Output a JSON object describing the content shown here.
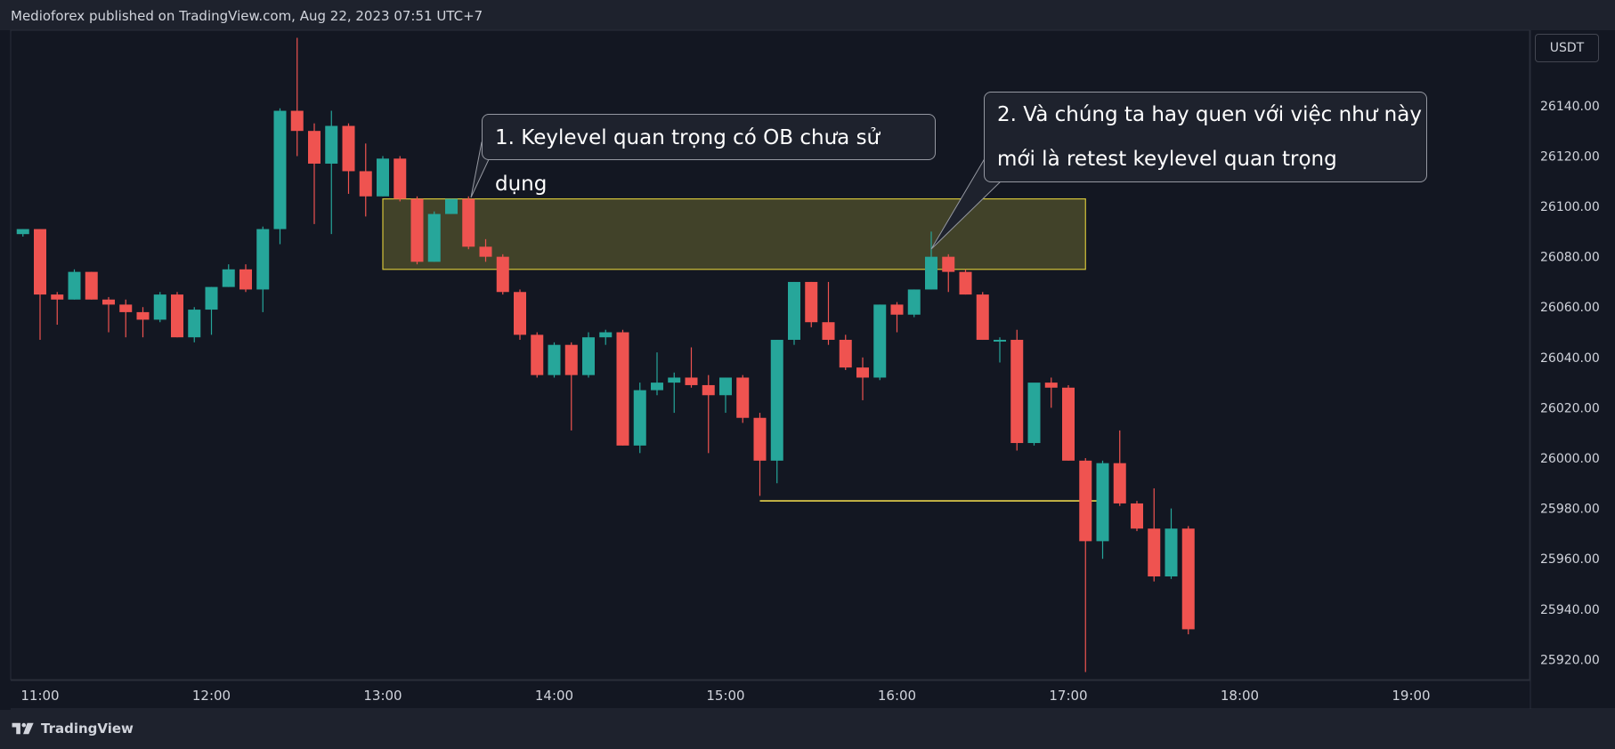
{
  "header": {
    "published": "Medioforex published on TradingView.com, Aug 22, 2023 07:51 UTC+7"
  },
  "footer": {
    "brand": "TradingView",
    "logo_icon": "tradingview-logo-icon"
  },
  "currency": "USDT",
  "colors": {
    "background": "#131722",
    "bullish": "#26a69a",
    "bearish": "#ef5350",
    "zone_border": "#d4c43a",
    "zone_fill": "#4a4a2a",
    "level_line": "#e8d44d",
    "text": "#d1d4dc"
  },
  "annotations": {
    "callout1": "1. Keylevel quan trọng có OB chưa sử dụng",
    "callout2_line1": "2. Và chúng ta hay quen với việc như này",
    "callout2_line2": "mới là retest keylevel quan trọng"
  },
  "chart_data": {
    "type": "candlestick",
    "x_tick_labels": [
      "11:00",
      "12:00",
      "13:00",
      "14:00",
      "15:00",
      "16:00",
      "17:00",
      "18:00",
      "19:00"
    ],
    "y_tick_labels": [
      "26140.00",
      "26120.00",
      "26100.00",
      "26080.00",
      "26060.00",
      "26040.00",
      "26020.00",
      "26000.00",
      "25980.00",
      "25960.00",
      "25940.00",
      "25920.00"
    ],
    "y_ticks": [
      26140,
      26120,
      26100,
      26080,
      26060,
      26040,
      26020,
      26000,
      25980,
      25960,
      25940,
      25920
    ],
    "ylim": [
      25912,
      26170
    ],
    "bar_interval_minutes": 6,
    "first_bar": "10:54",
    "candles": [
      {
        "o": 26089,
        "h": 26091,
        "l": 26088,
        "c": 26091
      },
      {
        "o": 26091,
        "h": 26091,
        "l": 26047,
        "c": 26065
      },
      {
        "o": 26065,
        "h": 26066,
        "l": 26053,
        "c": 26063
      },
      {
        "o": 26063,
        "h": 26075,
        "l": 26063,
        "c": 26074
      },
      {
        "o": 26074,
        "h": 26074,
        "l": 26063,
        "c": 26063
      },
      {
        "o": 26063,
        "h": 26064,
        "l": 26050,
        "c": 26061
      },
      {
        "o": 26061,
        "h": 26063,
        "l": 26048,
        "c": 26058
      },
      {
        "o": 26058,
        "h": 26060,
        "l": 26048,
        "c": 26055
      },
      {
        "o": 26055,
        "h": 26066,
        "l": 26054,
        "c": 26065
      },
      {
        "o": 26065,
        "h": 26066,
        "l": 26048,
        "c": 26048
      },
      {
        "o": 26048,
        "h": 26060,
        "l": 26046,
        "c": 26059
      },
      {
        "o": 26059,
        "h": 26068,
        "l": 26049,
        "c": 26068
      },
      {
        "o": 26068,
        "h": 26077,
        "l": 26068,
        "c": 26075
      },
      {
        "o": 26075,
        "h": 26077,
        "l": 26066,
        "c": 26067
      },
      {
        "o": 26067,
        "h": 26092,
        "l": 26058,
        "c": 26091
      },
      {
        "o": 26091,
        "h": 26139,
        "l": 26085,
        "c": 26138
      },
      {
        "o": 26138,
        "h": 26167,
        "l": 26120,
        "c": 26130
      },
      {
        "o": 26130,
        "h": 26133,
        "l": 26093,
        "c": 26117
      },
      {
        "o": 26117,
        "h": 26138,
        "l": 26089,
        "c": 26132
      },
      {
        "o": 26132,
        "h": 26133,
        "l": 26105,
        "c": 26114
      },
      {
        "o": 26114,
        "h": 26125,
        "l": 26096,
        "c": 26104
      },
      {
        "o": 26104,
        "h": 26120,
        "l": 26104,
        "c": 26119
      },
      {
        "o": 26119,
        "h": 26120,
        "l": 26102,
        "c": 26103
      },
      {
        "o": 26103,
        "h": 26104,
        "l": 26077,
        "c": 26078
      },
      {
        "o": 26078,
        "h": 26098,
        "l": 26078,
        "c": 26097
      },
      {
        "o": 26097,
        "h": 26103,
        "l": 26097,
        "c": 26103
      },
      {
        "o": 26103,
        "h": 26104,
        "l": 26083,
        "c": 26084
      },
      {
        "o": 26084,
        "h": 26087,
        "l": 26078,
        "c": 26080
      },
      {
        "o": 26080,
        "h": 26081,
        "l": 26065,
        "c": 26066
      },
      {
        "o": 26066,
        "h": 26067,
        "l": 26047,
        "c": 26049
      },
      {
        "o": 26049,
        "h": 26050,
        "l": 26032,
        "c": 26033
      },
      {
        "o": 26033,
        "h": 26046,
        "l": 26032,
        "c": 26045
      },
      {
        "o": 26045,
        "h": 26046,
        "l": 26011,
        "c": 26033
      },
      {
        "o": 26033,
        "h": 26050,
        "l": 26032,
        "c": 26048
      },
      {
        "o": 26048,
        "h": 26051,
        "l": 26045,
        "c": 26050
      },
      {
        "o": 26050,
        "h": 26051,
        "l": 26005,
        "c": 26005
      },
      {
        "o": 26005,
        "h": 26030,
        "l": 26002,
        "c": 26027
      },
      {
        "o": 26027,
        "h": 26042,
        "l": 26025,
        "c": 26030
      },
      {
        "o": 26030,
        "h": 26034,
        "l": 26018,
        "c": 26032
      },
      {
        "o": 26032,
        "h": 26044,
        "l": 26028,
        "c": 26029
      },
      {
        "o": 26029,
        "h": 26033,
        "l": 26002,
        "c": 26025
      },
      {
        "o": 26025,
        "h": 26032,
        "l": 26018,
        "c": 26032
      },
      {
        "o": 26032,
        "h": 26033,
        "l": 26014,
        "c": 26016
      },
      {
        "o": 26016,
        "h": 26018,
        "l": 25985,
        "c": 25999
      },
      {
        "o": 25999,
        "h": 26047,
        "l": 25990,
        "c": 26047
      },
      {
        "o": 26047,
        "h": 26070,
        "l": 26045,
        "c": 26070
      },
      {
        "o": 26070,
        "h": 26070,
        "l": 26052,
        "c": 26054
      },
      {
        "o": 26054,
        "h": 26070,
        "l": 26045,
        "c": 26047
      },
      {
        "o": 26047,
        "h": 26049,
        "l": 26035,
        "c": 26036
      },
      {
        "o": 26036,
        "h": 26040,
        "l": 26023,
        "c": 26032
      },
      {
        "o": 26032,
        "h": 26061,
        "l": 26031,
        "c": 26061
      },
      {
        "o": 26061,
        "h": 26062,
        "l": 26050,
        "c": 26057
      },
      {
        "o": 26057,
        "h": 26067,
        "l": 26056,
        "c": 26067
      },
      {
        "o": 26067,
        "h": 26090,
        "l": 26067,
        "c": 26080
      },
      {
        "o": 26080,
        "h": 26081,
        "l": 26066,
        "c": 26074
      },
      {
        "o": 26074,
        "h": 26075,
        "l": 26065,
        "c": 26065
      },
      {
        "o": 26065,
        "h": 26066,
        "l": 26047,
        "c": 26047
      },
      {
        "o": 26047,
        "h": 26048,
        "l": 26038,
        "c": 26047
      },
      {
        "o": 26047,
        "h": 26051,
        "l": 26003,
        "c": 26006
      },
      {
        "o": 26006,
        "h": 26029,
        "l": 26005,
        "c": 26030
      },
      {
        "o": 26030,
        "h": 26032,
        "l": 26020,
        "c": 26028
      },
      {
        "o": 26028,
        "h": 26029,
        "l": 25999,
        "c": 25999
      },
      {
        "o": 25999,
        "h": 26000,
        "l": 25915,
        "c": 25967
      },
      {
        "o": 25967,
        "h": 25999,
        "l": 25960,
        "c": 25998
      },
      {
        "o": 25998,
        "h": 26011,
        "l": 25981,
        "c": 25982
      },
      {
        "o": 25982,
        "h": 25983,
        "l": 25971,
        "c": 25972
      },
      {
        "o": 25972,
        "h": 25988,
        "l": 25951,
        "c": 25953
      },
      {
        "o": 25953,
        "h": 25980,
        "l": 25952,
        "c": 25972
      },
      {
        "o": 25972,
        "h": 25973,
        "l": 25930,
        "c": 25932
      }
    ],
    "zones": [
      {
        "from": "13:00",
        "to": "17:06",
        "top": 26103,
        "bottom": 26075
      }
    ],
    "levels": [
      {
        "from": "15:12",
        "to": "17:12",
        "price": 25983
      }
    ],
    "grid": false
  }
}
